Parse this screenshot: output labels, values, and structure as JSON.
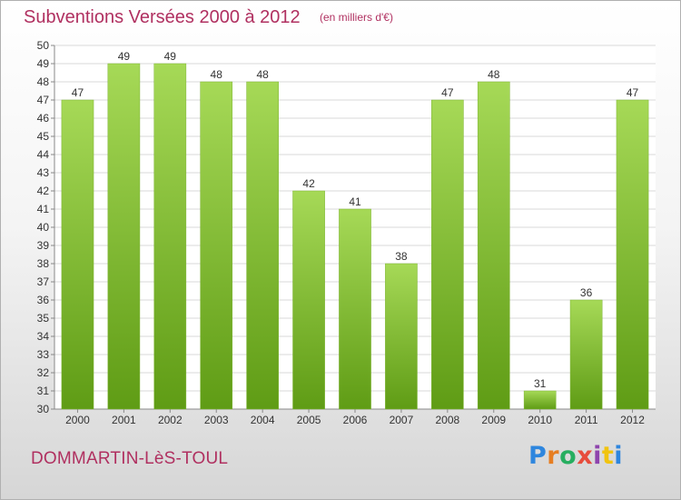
{
  "header": {
    "title": "Subventions Versées 2000 à 2012",
    "subtitle": "(en milliers d'€)"
  },
  "footer": {
    "commune": "DOMMARTIN-LèS-TOUL",
    "logo": "Proxiti",
    "logo_letters": [
      {
        "char": "P",
        "color": "#2e86de"
      },
      {
        "char": "r",
        "color": "#e67e22"
      },
      {
        "char": "o",
        "color": "#27ae60"
      },
      {
        "char": "x",
        "color": "#e74c3c"
      },
      {
        "char": "i",
        "color": "#8e44ad"
      },
      {
        "char": "t",
        "color": "#f1c40f"
      },
      {
        "char": "i",
        "color": "#2e86de"
      }
    ]
  },
  "colors": {
    "bar_top": "#a6d957",
    "bar_bottom": "#5f9c15",
    "title": "#b03060",
    "grid": "#d9d9d9",
    "axis": "#888888",
    "text": "#333333"
  },
  "chart_data": {
    "type": "bar",
    "categories": [
      "2000",
      "2001",
      "2002",
      "2003",
      "2004",
      "2005",
      "2006",
      "2007",
      "2008",
      "2009",
      "2010",
      "2011",
      "2012"
    ],
    "values": [
      47,
      49,
      49,
      48,
      48,
      42,
      41,
      38,
      47,
      48,
      31,
      36,
      47
    ],
    "ylim": [
      30,
      50
    ],
    "ytick_step": 1,
    "grid": true,
    "data_labels": true
  }
}
